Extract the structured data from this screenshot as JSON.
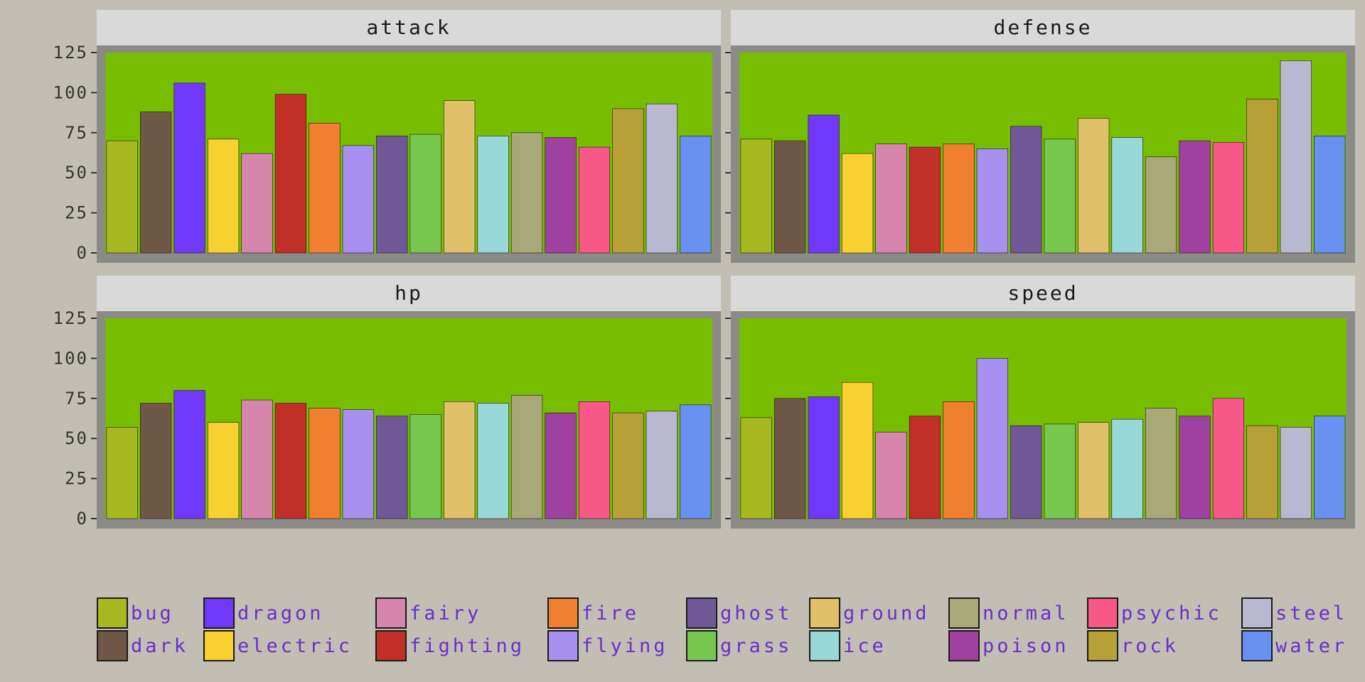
{
  "chart_data": {
    "type": "bar",
    "layout": "facet-grid-2x2",
    "categories": [
      "bug",
      "dark",
      "dragon",
      "electric",
      "fairy",
      "fighting",
      "fire",
      "flying",
      "ghost",
      "grass",
      "ground",
      "ice",
      "normal",
      "poison",
      "psychic",
      "rock",
      "steel",
      "water"
    ],
    "colors": {
      "bug": "#a8b820",
      "dark": "#705848",
      "dragon": "#7038f8",
      "electric": "#f8d030",
      "fairy": "#d685ad",
      "fighting": "#c03028",
      "fire": "#f08030",
      "flying": "#a890f0",
      "ghost": "#705898",
      "grass": "#78c850",
      "ground": "#e0c068",
      "ice": "#98d8d8",
      "normal": "#a8a878",
      "poison": "#a040a0",
      "psychic": "#f85888",
      "rock": "#b8a038",
      "steel": "#b8b8d0",
      "water": "#6890f0"
    },
    "ylim": [
      0,
      125
    ],
    "yticks": [
      "0",
      "25",
      "50",
      "75",
      "100",
      "125"
    ],
    "grid": false,
    "panel_background": "#78be00",
    "legend_position": "bottom",
    "panels": [
      {
        "title": "attack",
        "values": [
          70,
          88,
          106,
          71,
          62,
          99,
          81,
          67,
          73,
          74,
          95,
          73,
          75,
          72,
          66,
          90,
          93,
          73
        ]
      },
      {
        "title": "defense",
        "values": [
          71,
          70,
          86,
          62,
          68,
          66,
          68,
          65,
          79,
          71,
          84,
          72,
          60,
          70,
          69,
          96,
          120,
          73
        ]
      },
      {
        "title": "hp",
        "values": [
          57,
          72,
          80,
          60,
          74,
          72,
          69,
          68,
          64,
          65,
          73,
          72,
          77,
          66,
          73,
          66,
          67,
          71
        ]
      },
      {
        "title": "speed",
        "values": [
          63,
          75,
          76,
          85,
          54,
          64,
          73,
          100,
          58,
          59,
          60,
          62,
          69,
          64,
          75,
          58,
          57,
          64
        ]
      }
    ]
  }
}
